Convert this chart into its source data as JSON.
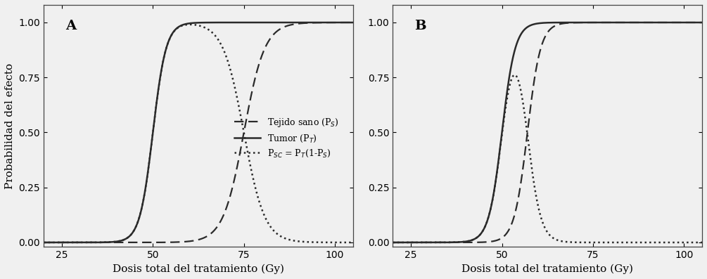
{
  "xlim": [
    20,
    105
  ],
  "ylim": [
    -0.02,
    1.08
  ],
  "yticks": [
    0.0,
    0.25,
    0.5,
    0.75,
    1.0
  ],
  "xticks": [
    25,
    50,
    75,
    100
  ],
  "xlabel": "Dosis total del tratamiento (Gy)",
  "ylabel": "Probabilidad del efecto",
  "panel_A_label": "A",
  "panel_B_label": "B",
  "legend_labels": [
    "Tejido sano (P$_S$)",
    "Tumor (P$_T$)",
    "P$_{SC}$ = P$_T$(1-P$_S$)"
  ],
  "line_color": "#2a2a2a",
  "background_color": "#f0f0f0",
  "A": {
    "tumor_D50": 50,
    "tumor_k": 0.55,
    "healthy_D50": 75,
    "healthy_k": 0.35
  },
  "B": {
    "tumor_D50": 50,
    "tumor_k": 0.55,
    "healthy_D50": 57,
    "healthy_k": 0.55
  }
}
